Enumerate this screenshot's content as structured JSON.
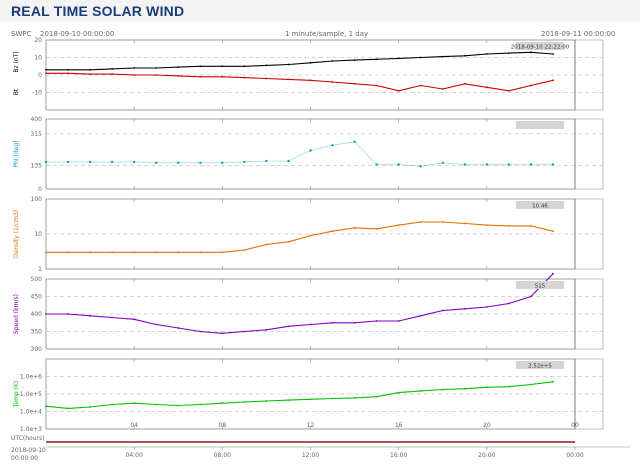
{
  "banner": {
    "title": "REAL TIME SOLAR WIND"
  },
  "header": {
    "source": "SWPC",
    "start_time": "2018-09-10 00:00:00",
    "sampling": "1 minute/sample, 1 day",
    "end_time": "2018-09-11 00:00:00",
    "cursor_time": "2018-09-10 22:22:00"
  },
  "chart_data": [
    {
      "type": "line",
      "panel": "magnetic field",
      "ylabel_top": "Bz (nT)",
      "ylabel_bottom": "Bt",
      "ylim": [
        -20,
        20
      ],
      "yticks": [
        -10,
        0,
        10,
        20
      ],
      "x": [
        0,
        1,
        2,
        3,
        4,
        5,
        6,
        7,
        8,
        9,
        10,
        11,
        12,
        13,
        14,
        15,
        16,
        17,
        18,
        19,
        20,
        21,
        22,
        23
      ],
      "series": [
        {
          "color": "#000000",
          "values": [
            3,
            3,
            3,
            3.5,
            4,
            4,
            4.5,
            5,
            5,
            5,
            5.5,
            6,
            7,
            8,
            8.5,
            9,
            9.5,
            10,
            10.5,
            11,
            12,
            12.5,
            13,
            12
          ]
        },
        {
          "color": "#cc0000",
          "values": [
            1,
            1,
            0.5,
            0.5,
            0,
            0,
            -0.5,
            -1,
            -1,
            -1.5,
            -2,
            -2.5,
            -3,
            -4,
            -5,
            -6,
            -9,
            -6,
            -8,
            -5,
            -7,
            -9,
            -6,
            -3
          ]
        }
      ],
      "label_box": ""
    },
    {
      "type": "scatter",
      "panel": "phi",
      "ylabel": "Phi (deg)",
      "ylim": [
        0,
        400
      ],
      "yticks": [
        0,
        135,
        315,
        400
      ],
      "x": [
        0,
        1,
        2,
        3,
        4,
        5,
        6,
        7,
        8,
        9,
        10,
        11,
        12,
        13,
        14,
        15,
        16,
        17,
        18,
        19,
        20,
        21,
        22,
        23
      ],
      "series": [
        {
          "color": "#00a0c8",
          "values": [
            155,
            155,
            155,
            155,
            155,
            150,
            150,
            150,
            150,
            155,
            160,
            160,
            220,
            250,
            270,
            140,
            140,
            130,
            150,
            140,
            140,
            140,
            140,
            140
          ]
        }
      ],
      "label_box": ""
    },
    {
      "type": "line",
      "panel": "density",
      "ylabel": "Density (1/cm3)",
      "ylim": [
        1,
        100
      ],
      "log_scale": true,
      "yticks": [
        1,
        10,
        100
      ],
      "x": [
        0,
        1,
        2,
        3,
        4,
        5,
        6,
        7,
        8,
        9,
        10,
        11,
        12,
        13,
        14,
        15,
        16,
        17,
        18,
        19,
        20,
        21,
        22,
        23
      ],
      "series": [
        {
          "color": "#e07000",
          "values": [
            3,
            3,
            3,
            3,
            3,
            3,
            3,
            3,
            3,
            3.5,
            5,
            6,
            9,
            12,
            15,
            14,
            18,
            22,
            22,
            20,
            18,
            17,
            17,
            12
          ]
        }
      ],
      "label_box": "10.46"
    },
    {
      "type": "line",
      "panel": "speed",
      "ylabel": "Speed (km/s)",
      "ylim": [
        300,
        500
      ],
      "yticks": [
        300,
        350,
        400,
        450,
        500
      ],
      "x": [
        0,
        1,
        2,
        3,
        4,
        5,
        6,
        7,
        8,
        9,
        10,
        11,
        12,
        13,
        14,
        15,
        16,
        17,
        18,
        19,
        20,
        21,
        22,
        23
      ],
      "series": [
        {
          "color": "#8000b8",
          "values": [
            400,
            400,
            395,
            390,
            385,
            370,
            360,
            350,
            345,
            350,
            355,
            365,
            370,
            375,
            375,
            380,
            380,
            395,
            410,
            415,
            420,
            430,
            450,
            515
          ]
        }
      ],
      "label_box": "515"
    },
    {
      "type": "line",
      "panel": "temperature",
      "ylabel": "Temp (K)",
      "ylim": [
        1000,
        10000000
      ],
      "log_scale": true,
      "yticks": [
        "1.0e+3",
        "1.0e+4",
        "1.0e+5",
        "1.0e+6"
      ],
      "x": [
        0,
        1,
        2,
        3,
        4,
        5,
        6,
        7,
        8,
        9,
        10,
        11,
        12,
        13,
        14,
        15,
        16,
        17,
        18,
        19,
        20,
        21,
        22,
        23
      ],
      "series": [
        {
          "color": "#00c000",
          "values": [
            20000,
            15000,
            18000,
            25000,
            30000,
            25000,
            22000,
            25000,
            30000,
            35000,
            40000,
            45000,
            50000,
            55000,
            60000,
            70000,
            120000,
            150000,
            180000,
            200000,
            240000,
            260000,
            350000,
            500000
          ]
        }
      ],
      "label_box": "2.52e+5"
    }
  ],
  "time_axis": {
    "label": "UTC(hours)",
    "ticks": [
      "04",
      "08",
      "12",
      "16",
      "20",
      "00"
    ]
  },
  "bottom_axis": {
    "start_label_date": "2018-09-10",
    "start_label_time": "00:00:00",
    "ticks": [
      "04:00",
      "08:00",
      "12:00",
      "16:00",
      "20:00",
      "00:00"
    ]
  }
}
